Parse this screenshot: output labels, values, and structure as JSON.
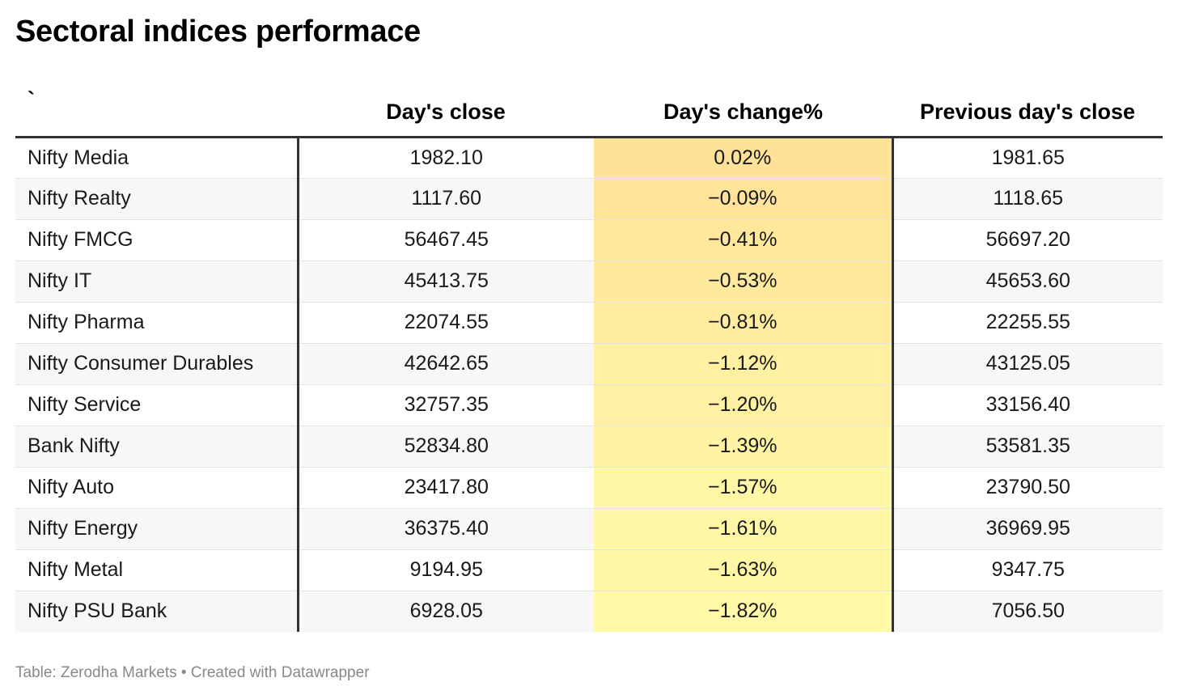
{
  "chart_data": {
    "type": "table",
    "title": "Sectoral indices performace",
    "columns": [
      "`",
      "Day's close",
      "Day's change%",
      "Previous day's close"
    ],
    "rows": [
      {
        "name": "Nifty Media",
        "close": "1982.10",
        "change": "0.02%",
        "prev_close": "1981.65",
        "change_value": 0.02
      },
      {
        "name": "Nifty Realty",
        "close": "1117.60",
        "change": "−0.09%",
        "prev_close": "1118.65",
        "change_value": -0.09
      },
      {
        "name": "Nifty FMCG",
        "close": "56467.45",
        "change": "−0.41%",
        "prev_close": "56697.20",
        "change_value": -0.41
      },
      {
        "name": "Nifty IT",
        "close": "45413.75",
        "change": "−0.53%",
        "prev_close": "45653.60",
        "change_value": -0.53
      },
      {
        "name": "Nifty Pharma",
        "close": "22074.55",
        "change": "−0.81%",
        "prev_close": "22255.55",
        "change_value": -0.81
      },
      {
        "name": "Nifty Consumer Durables",
        "close": "42642.65",
        "change": "−1.12%",
        "prev_close": "43125.05",
        "change_value": -1.12
      },
      {
        "name": "Nifty Service",
        "close": "32757.35",
        "change": "−1.20%",
        "prev_close": "33156.40",
        "change_value": -1.2
      },
      {
        "name": "Bank Nifty",
        "close": "52834.80",
        "change": "−1.39%",
        "prev_close": "53581.35",
        "change_value": -1.39
      },
      {
        "name": "Nifty Auto",
        "close": "23417.80",
        "change": "−1.57%",
        "prev_close": "23790.50",
        "change_value": -1.57
      },
      {
        "name": "Nifty Energy",
        "close": "36375.40",
        "change": "−1.61%",
        "prev_close": "36969.95",
        "change_value": -1.61
      },
      {
        "name": "Nifty Metal",
        "close": "9194.95",
        "change": "−1.63%",
        "prev_close": "9347.75",
        "change_value": -1.63
      },
      {
        "name": "Nifty PSU Bank",
        "close": "6928.05",
        "change": "−1.82%",
        "prev_close": "7056.50",
        "change_value": -1.82
      }
    ],
    "heatmap_column": "Day's change%",
    "heatmap_colors": {
      "high": "#ffe298",
      "low": "#fff9a8"
    }
  },
  "footer": {
    "source": "Table: Zerodha Markets • Created with Datawrapper"
  }
}
